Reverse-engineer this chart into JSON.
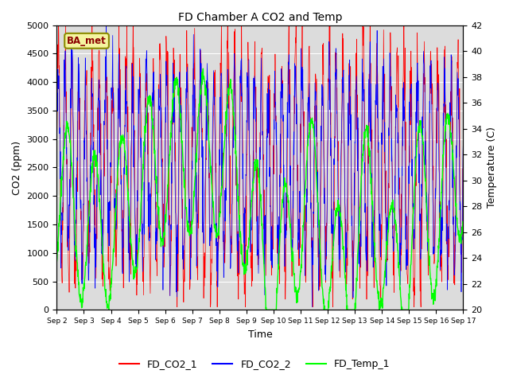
{
  "title": "FD Chamber A CO2 and Temp",
  "xlabel": "Time",
  "ylabel_left": "CO2 (ppm)",
  "ylabel_right": "Temperature (C)",
  "ylim_left": [
    0,
    5000
  ],
  "ylim_right": [
    20,
    42
  ],
  "yticks_left": [
    0,
    500,
    1000,
    1500,
    2000,
    2500,
    3000,
    3500,
    4000,
    4500,
    5000
  ],
  "yticks_right": [
    20,
    22,
    24,
    26,
    28,
    30,
    32,
    34,
    36,
    38,
    40,
    42
  ],
  "xtick_labels": [
    "Sep 2",
    "Sep 3",
    "Sep 4",
    "Sep 5",
    "Sep 6",
    "Sep 7",
    "Sep 8",
    "Sep 9",
    "Sep 10",
    "Sep 11",
    "Sep 12",
    "Sep 13",
    "Sep 14",
    "Sep 15",
    "Sep 16",
    "Sep 17"
  ],
  "color_co2_1": "red",
  "color_co2_2": "blue",
  "color_temp": "lime",
  "annotation_text": "BA_met",
  "background_color": "#dcdcdc",
  "seed": 42,
  "n_days": 15,
  "points_per_day": 96,
  "figsize": [
    6.4,
    4.8
  ],
  "dpi": 100
}
